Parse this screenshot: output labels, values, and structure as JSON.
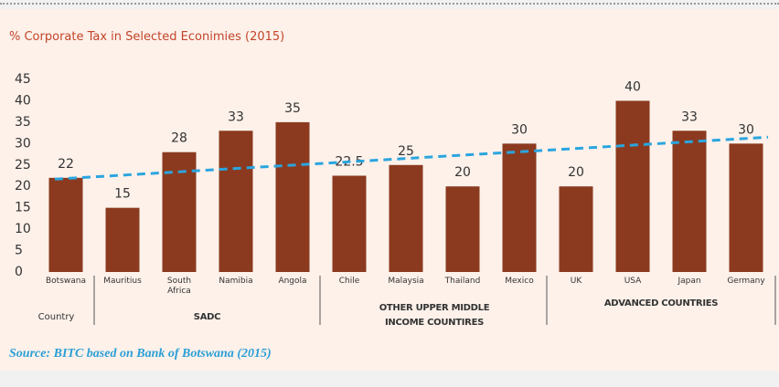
{
  "chart_data": {
    "type": "bar",
    "title": "% Corporate Tax in Selected Econimies (2015)",
    "categories": [
      "Botswana",
      "Mauritius",
      "South Africa",
      "Namibia",
      "Angola",
      "Chile",
      "Malaysia",
      "Thailand",
      "Mexico",
      "UK",
      "USA",
      "Japan",
      "Germany"
    ],
    "values": [
      22,
      15,
      28,
      33,
      35,
      22.5,
      25,
      20,
      30,
      20,
      40,
      33,
      30
    ],
    "color": "#8b3a1f",
    "ylim": [
      0,
      45
    ],
    "yticks": [
      0,
      5,
      10,
      15,
      20,
      25,
      30,
      35,
      40,
      45
    ],
    "trendline": {
      "values": [
        21.7,
        31.5
      ],
      "color": "#2aa5df"
    },
    "groups": [
      "Country",
      "SADC",
      "OTHER UPPER MIDDLE INCOME COUNTIRES",
      "ADVANCED COUNTRIES"
    ],
    "source": "Source: BITC based on Bank of Botswana (2015)"
  }
}
